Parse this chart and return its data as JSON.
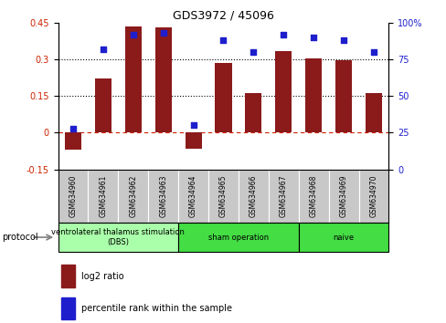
{
  "title": "GDS3972 / 45096",
  "samples": [
    "GSM634960",
    "GSM634961",
    "GSM634962",
    "GSM634963",
    "GSM634964",
    "GSM634965",
    "GSM634966",
    "GSM634967",
    "GSM634968",
    "GSM634969",
    "GSM634970"
  ],
  "log2_ratio": [
    -0.07,
    0.22,
    0.435,
    0.43,
    -0.065,
    0.285,
    0.16,
    0.335,
    0.305,
    0.295,
    0.16
  ],
  "percentile_rank": [
    28,
    82,
    92,
    93,
    30,
    88,
    80,
    92,
    90,
    88,
    80
  ],
  "bar_color": "#8B1A1A",
  "dot_color": "#1E1ECD",
  "ylim_left": [
    -0.15,
    0.45
  ],
  "ylim_right": [
    0,
    100
  ],
  "yticks_left": [
    -0.15,
    0,
    0.15,
    0.3,
    0.45
  ],
  "yticks_right": [
    0,
    25,
    50,
    75,
    100
  ],
  "hlines": [
    0.15,
    0.3
  ],
  "zero_line": 0,
  "group_dbs_color": "#AAFFAA",
  "group_sham_color": "#44DD44",
  "group_naive_color": "#44DD44",
  "group_dbs_label": "ventrolateral thalamus stimulation\n(DBS)",
  "group_sham_label": "sham operation",
  "group_naive_label": "naive",
  "protocol_label": "protocol",
  "legend_bar_label": "log2 ratio",
  "legend_dot_label": "percentile rank within the sample",
  "background_color": "#ffffff",
  "sample_box_color": "#C8C8C8",
  "bar_width": 0.55
}
